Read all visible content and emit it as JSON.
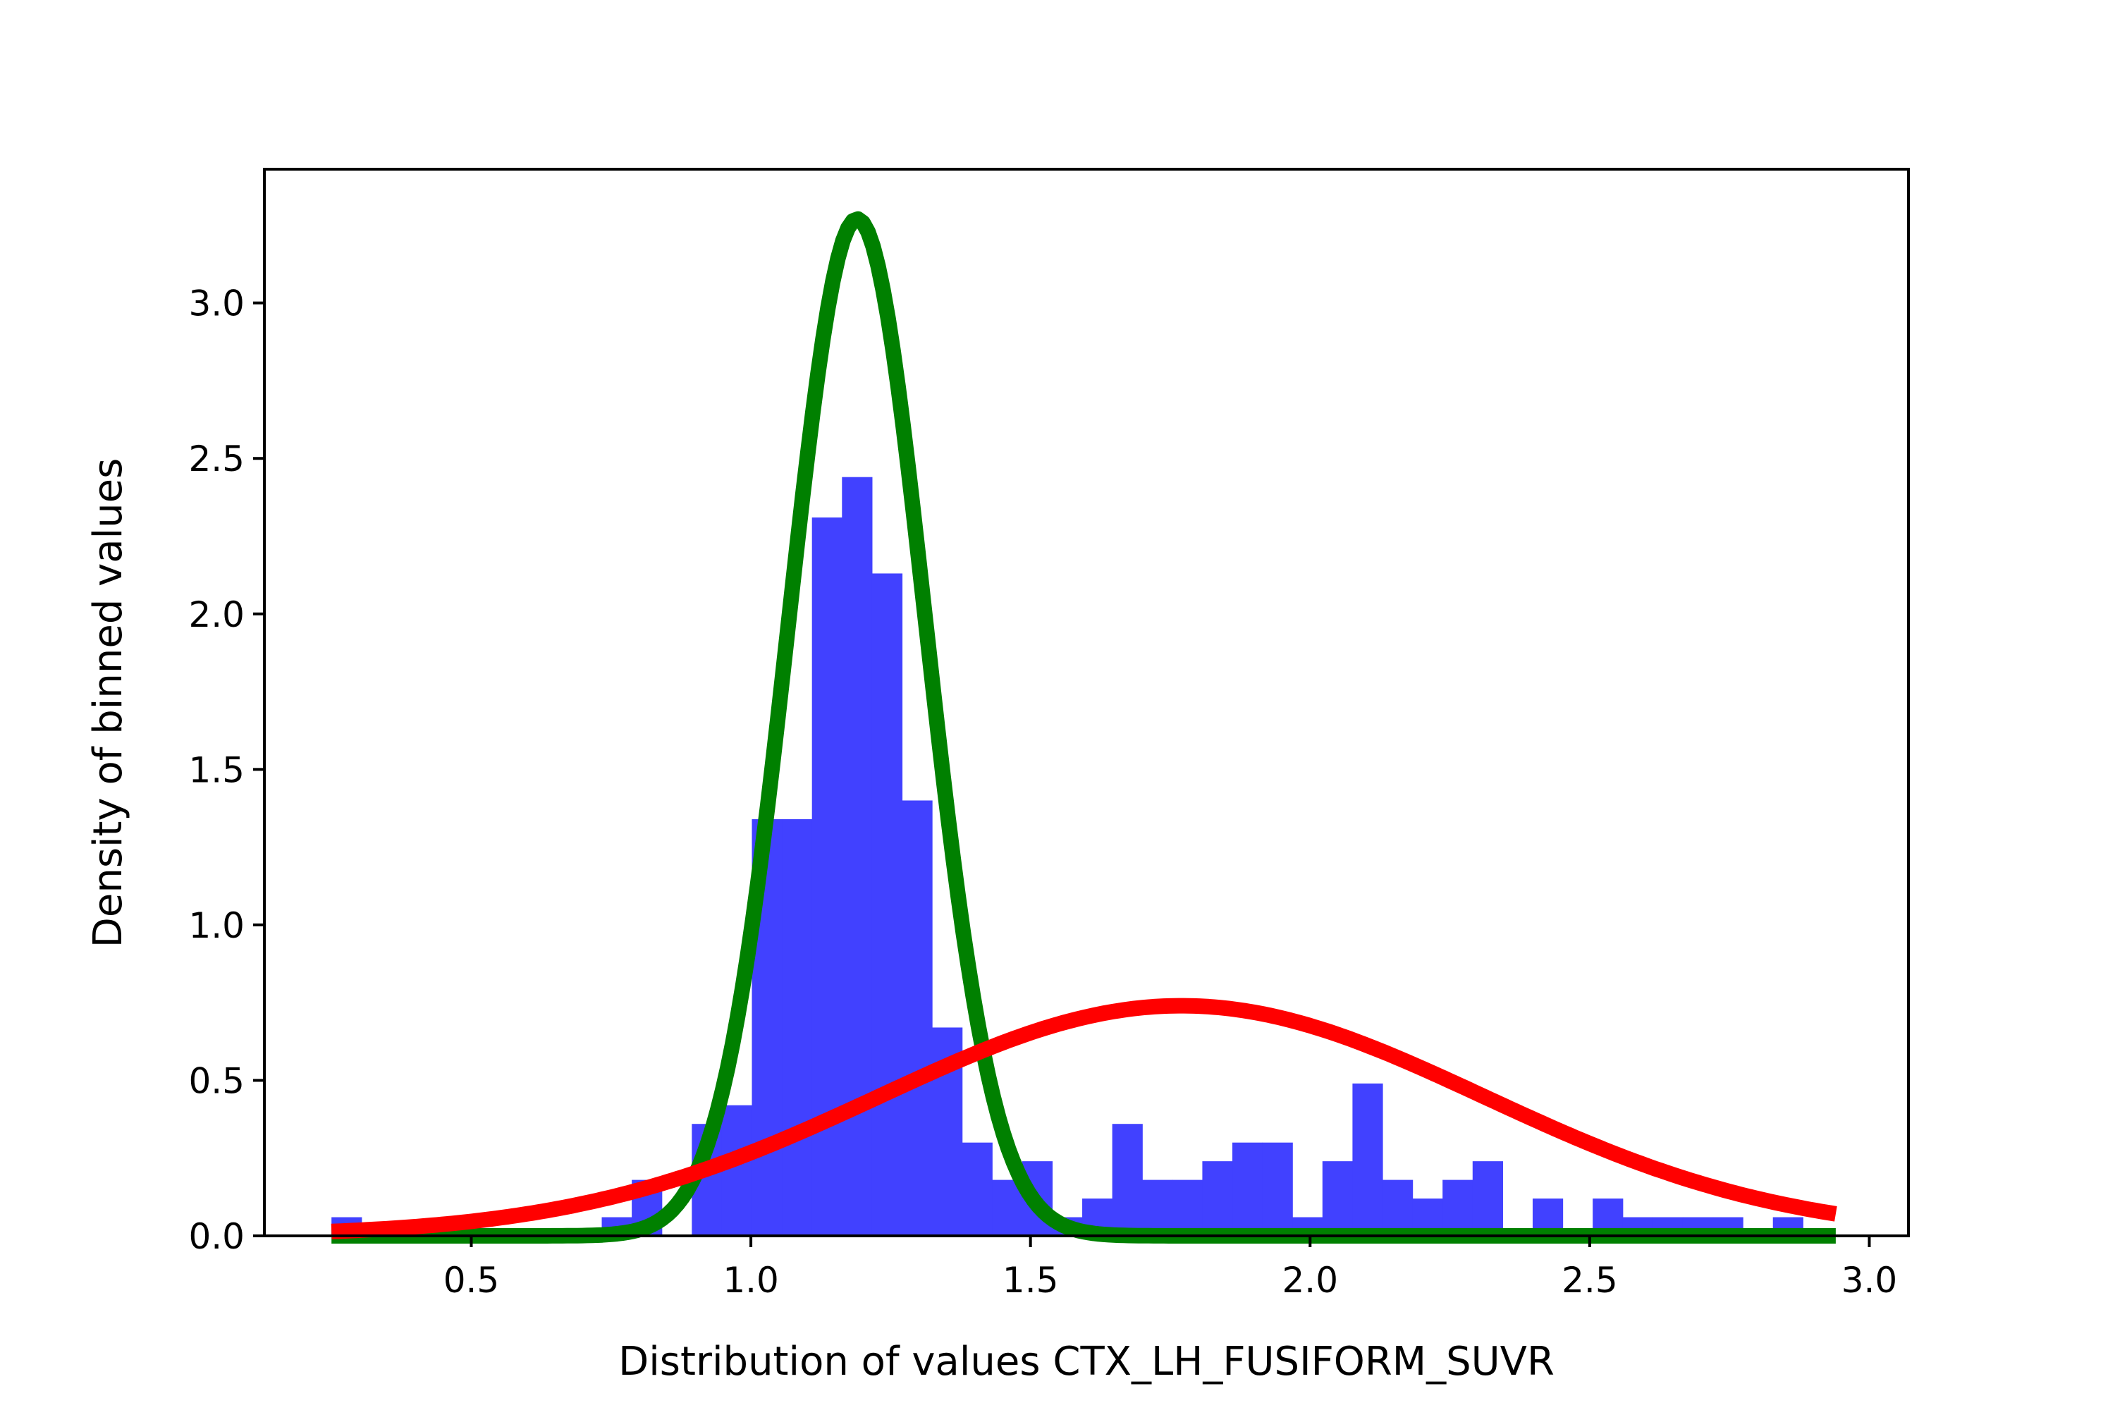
{
  "chart_data": {
    "type": "bar",
    "xlabel": "Distribution of values CTX_LH_FUSIFORM_SUVR",
    "ylabel": "Density of binned values",
    "xlim": [
      0.13,
      3.07
    ],
    "ylim": [
      0,
      3.43
    ],
    "xticks": [
      0.5,
      1.0,
      1.5,
      2.0,
      2.5,
      3.0
    ],
    "xtick_labels": [
      "0.5",
      "1.0",
      "1.5",
      "2.0",
      "2.5",
      "3.0"
    ],
    "yticks": [
      0.0,
      0.5,
      1.0,
      1.5,
      2.0,
      2.5,
      3.0
    ],
    "ytick_labels": [
      "0.0",
      "0.5",
      "1.0",
      "1.5",
      "2.0",
      "2.5",
      "3.0"
    ],
    "grid": false,
    "histogram": {
      "bin_start": 0.25,
      "bin_width": 0.0537,
      "values": [
        0.06,
        0.0,
        0.0,
        0.0,
        0.0,
        0.0,
        0.0,
        0.0,
        0.0,
        0.06,
        0.18,
        0.0,
        0.36,
        0.42,
        1.34,
        1.34,
        2.31,
        2.44,
        2.13,
        1.4,
        0.67,
        0.3,
        0.18,
        0.24,
        0.06,
        0.12,
        0.36,
        0.18,
        0.18,
        0.24,
        0.3,
        0.3,
        0.06,
        0.24,
        0.49,
        0.18,
        0.12,
        0.18,
        0.24,
        0.0,
        0.12,
        0.0,
        0.12,
        0.06,
        0.06,
        0.06,
        0.06,
        0.0,
        0.06,
        0.0
      ]
    },
    "curves": [
      {
        "mean": 1.19,
        "sd": 0.122,
        "peak": 3.27
      },
      {
        "mean": 1.77,
        "sd": 0.54,
        "peak": 0.74
      }
    ],
    "colors": {
      "bars": "#4141ff",
      "curve_1": "#008000",
      "curve_2": "#ff0000"
    }
  }
}
